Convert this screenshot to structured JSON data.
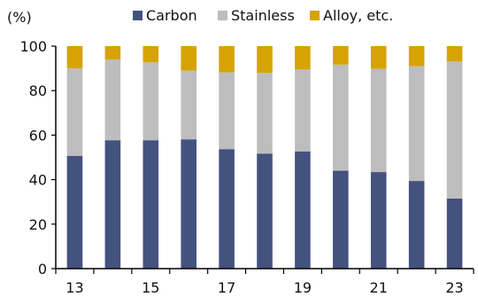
{
  "chart_data": {
    "type": "bar",
    "stacked": true,
    "y_unit_label": "(%)",
    "categories": [
      "13",
      "14",
      "15",
      "16",
      "17",
      "18",
      "19",
      "20",
      "21",
      "22",
      "23"
    ],
    "x_tick_labels": [
      "13",
      "15",
      "17",
      "19",
      "21",
      "23"
    ],
    "series": [
      {
        "name": "Carbon",
        "color": "#44527f",
        "values": [
          50.7,
          57.7,
          57.7,
          58.1,
          53.7,
          51.7,
          52.7,
          44.0,
          43.4,
          39.4,
          31.5
        ]
      },
      {
        "name": "Stainless",
        "color": "#bdbdbd",
        "values": [
          39.3,
          36.3,
          35.0,
          30.9,
          34.5,
          36.3,
          36.8,
          47.7,
          46.4,
          51.6,
          61.6
        ]
      },
      {
        "name": "Alloy, etc.",
        "color": "#d6a300",
        "values": [
          10.0,
          6.0,
          7.3,
          11.0,
          11.8,
          12.0,
          10.5,
          8.3,
          10.2,
          9.0,
          6.9
        ]
      }
    ],
    "y_ticks": [
      0,
      20,
      40,
      60,
      80,
      100
    ],
    "ylim": [
      0,
      100
    ],
    "grid": false,
    "legend_position": "top"
  }
}
